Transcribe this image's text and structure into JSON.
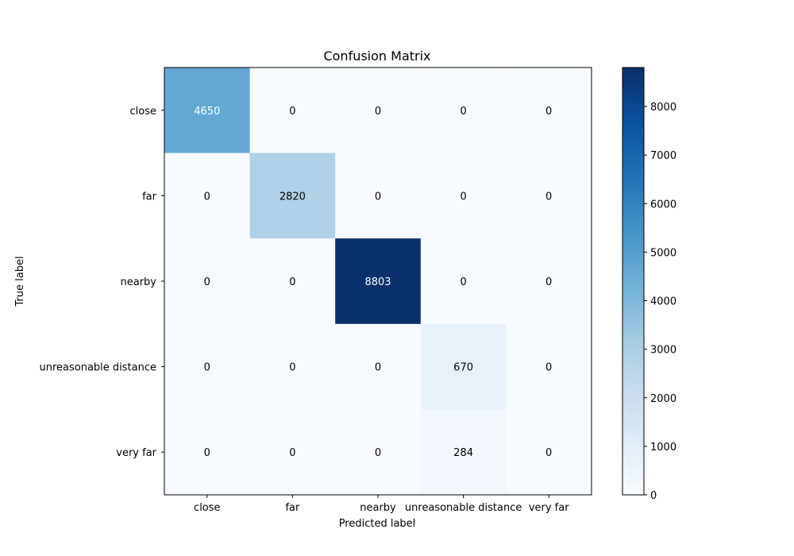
{
  "chart_data": {
    "type": "heatmap",
    "title": "Confusion Matrix",
    "xlabel": "Predicted label",
    "ylabel": "True label",
    "x_categories": [
      "close",
      "far",
      "nearby",
      "unreasonable distance",
      "very far"
    ],
    "y_categories": [
      "close",
      "far",
      "nearby",
      "unreasonable distance",
      "very far"
    ],
    "values": [
      [
        4650,
        0,
        0,
        0,
        0
      ],
      [
        0,
        2820,
        0,
        0,
        0
      ],
      [
        0,
        0,
        8803,
        0,
        0
      ],
      [
        0,
        0,
        0,
        670,
        0
      ],
      [
        0,
        0,
        0,
        284,
        0
      ]
    ],
    "colormap": "Blues",
    "colorbar": {
      "range": [
        0,
        8803
      ],
      "ticks": [
        0,
        1000,
        2000,
        3000,
        4000,
        5000,
        6000,
        7000,
        8000
      ]
    }
  }
}
